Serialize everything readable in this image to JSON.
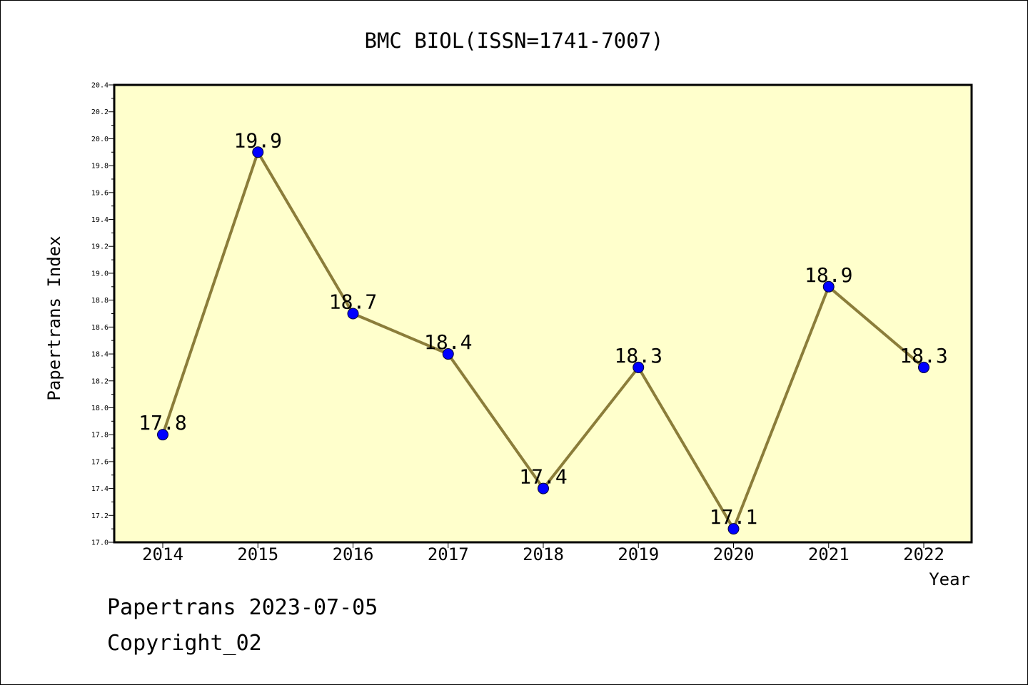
{
  "chart_data": {
    "type": "line",
    "title": "BMC BIOL(ISSN=1741-7007)",
    "xlabel": "Year",
    "ylabel": "Papertrans Index",
    "categories": [
      "2014",
      "2015",
      "2016",
      "2017",
      "2018",
      "2019",
      "2020",
      "2021",
      "2022"
    ],
    "series": [
      {
        "values": [
          17.8,
          19.9,
          18.7,
          18.4,
          17.4,
          18.3,
          17.1,
          18.9,
          18.3
        ]
      }
    ],
    "data_labels": [
      "17.8",
      "19.9",
      "18.7",
      "18.4",
      "17.4",
      "18.3",
      "17.1",
      "18.9",
      "18.3"
    ],
    "ylim": [
      17.0,
      20.4
    ],
    "yticks": [
      "17.0",
      "17.2",
      "17.4",
      "17.6",
      "17.8",
      "18.0",
      "18.2",
      "18.4",
      "18.6",
      "18.8",
      "19.0",
      "19.2",
      "19.4",
      "19.6",
      "19.8",
      "20.0",
      "20.2",
      "20.4"
    ],
    "grid": false,
    "colors": {
      "plot_background": "#ffffcc",
      "line": "#8b7d3a",
      "marker": "#0000ff",
      "axes": "#000000"
    }
  },
  "footer": {
    "date_line": "Papertrans 2023-07-05",
    "copyright": "Copyright_02"
  }
}
